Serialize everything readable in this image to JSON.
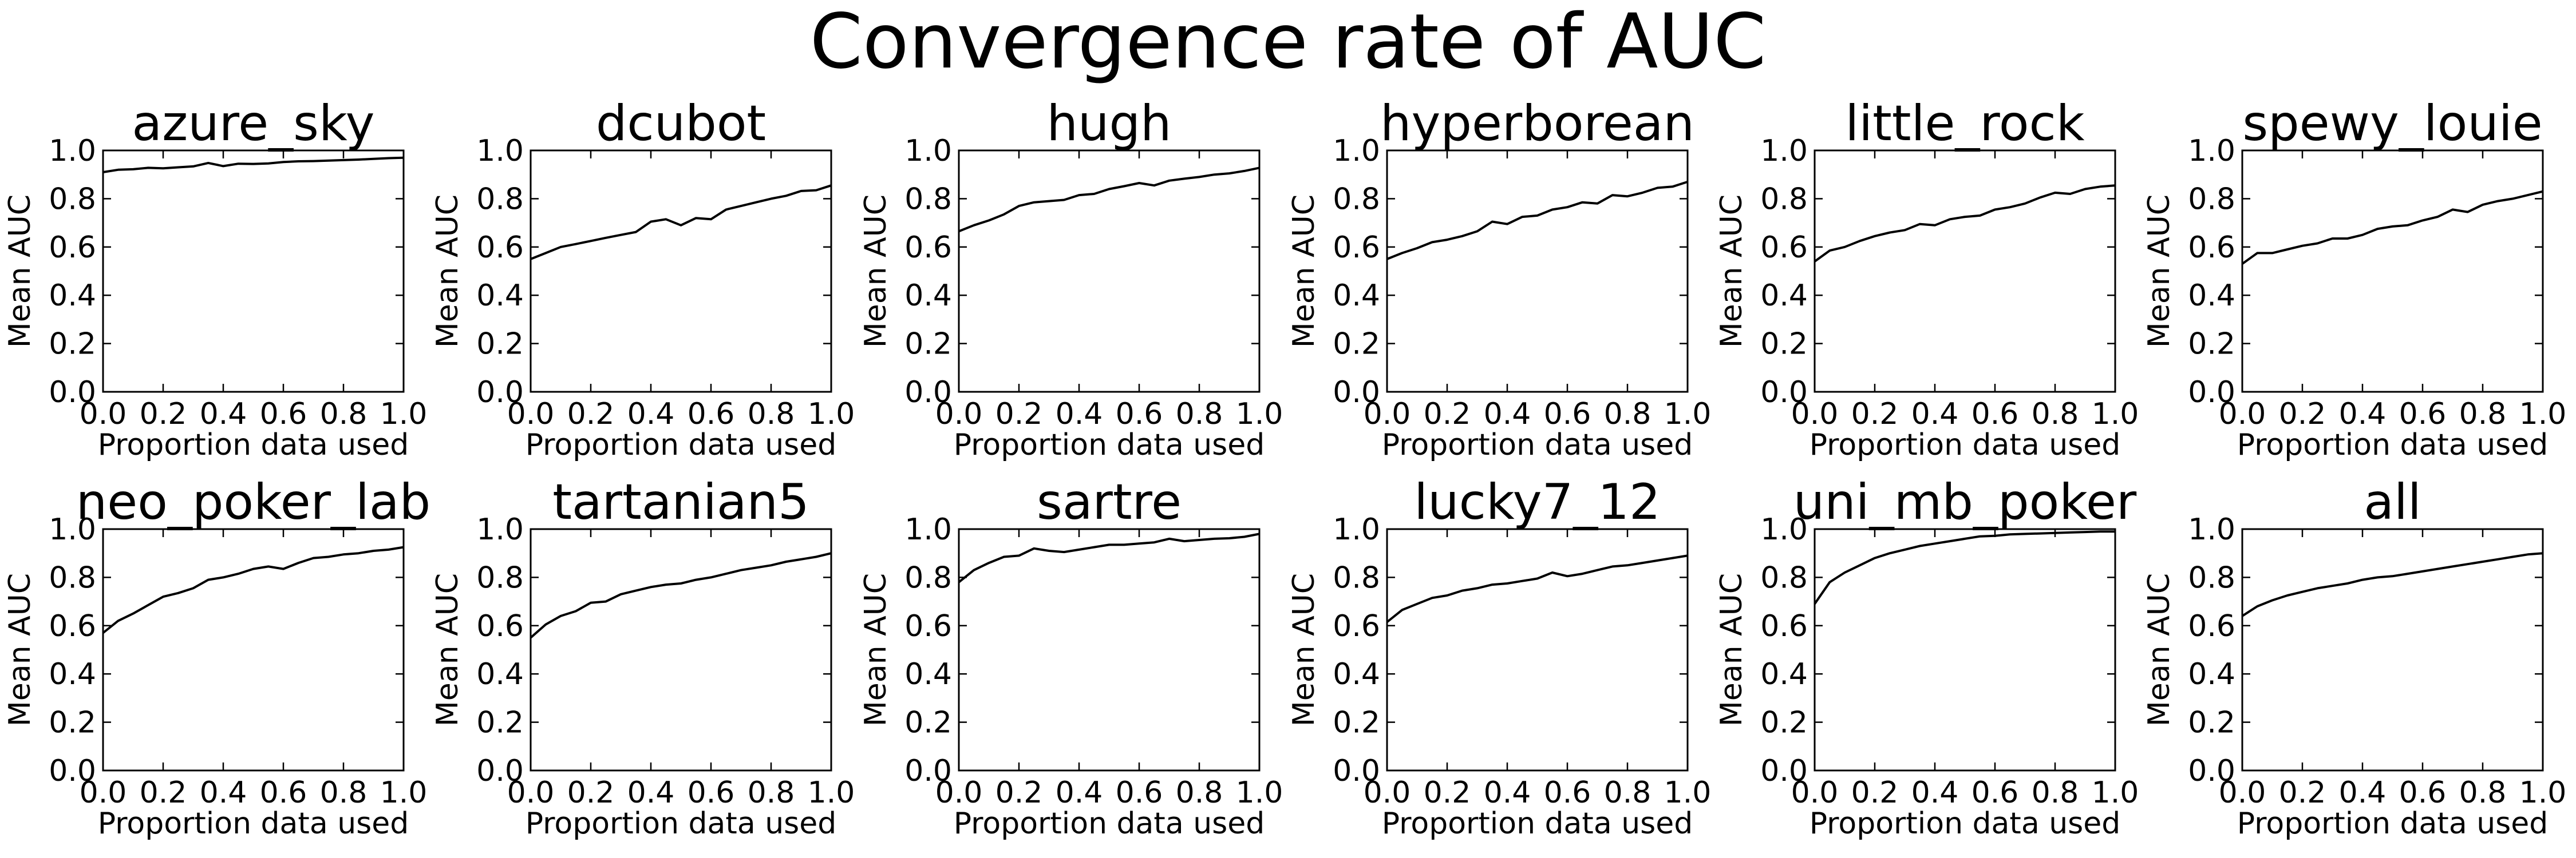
{
  "figure": {
    "title": "Convergence rate of AUC",
    "colors": {
      "line": "#000000",
      "background": "#ffffff"
    }
  },
  "chart_data": [
    {
      "type": "line",
      "title": "azure_sky",
      "xlabel": "Proportion data used",
      "ylabel": "Mean AUC",
      "xlim": [
        0,
        1
      ],
      "ylim": [
        0,
        1
      ],
      "xticks": [
        "0.0",
        "0.2",
        "0.4",
        "0.6",
        "0.8",
        "1.0"
      ],
      "yticks": [
        "0.0",
        "0.2",
        "0.4",
        "0.6",
        "0.8",
        "1.0"
      ],
      "x": [
        0,
        0.05,
        0.1,
        0.15,
        0.2,
        0.25,
        0.3,
        0.35,
        0.4,
        0.45,
        0.5,
        0.55,
        0.6,
        0.65,
        0.7,
        0.75,
        0.8,
        0.85,
        0.9,
        0.95,
        1.0
      ],
      "y": [
        0.91,
        0.92,
        0.922,
        0.928,
        0.926,
        0.93,
        0.934,
        0.948,
        0.935,
        0.945,
        0.944,
        0.946,
        0.952,
        0.955,
        0.956,
        0.958,
        0.96,
        0.962,
        0.965,
        0.968,
        0.97
      ]
    },
    {
      "type": "line",
      "title": "dcubot",
      "xlabel": "Proportion data used",
      "ylabel": "Mean AUC",
      "xlim": [
        0,
        1
      ],
      "ylim": [
        0,
        1
      ],
      "xticks": [
        "0.0",
        "0.2",
        "0.4",
        "0.6",
        "0.8",
        "1.0"
      ],
      "yticks": [
        "0.0",
        "0.2",
        "0.4",
        "0.6",
        "0.8",
        "1.0"
      ],
      "x": [
        0,
        0.05,
        0.1,
        0.15,
        0.2,
        0.25,
        0.3,
        0.35,
        0.4,
        0.45,
        0.5,
        0.55,
        0.6,
        0.65,
        0.7,
        0.75,
        0.8,
        0.85,
        0.9,
        0.95,
        1.0
      ],
      "y": [
        0.55,
        0.575,
        0.6,
        0.612,
        0.625,
        0.638,
        0.65,
        0.662,
        0.705,
        0.715,
        0.69,
        0.72,
        0.715,
        0.755,
        0.77,
        0.785,
        0.8,
        0.812,
        0.832,
        0.835,
        0.855
      ]
    },
    {
      "type": "line",
      "title": "hugh",
      "xlabel": "Proportion data used",
      "ylabel": "Mean AUC",
      "xlim": [
        0,
        1
      ],
      "ylim": [
        0,
        1
      ],
      "xticks": [
        "0.0",
        "0.2",
        "0.4",
        "0.6",
        "0.8",
        "1.0"
      ],
      "yticks": [
        "0.0",
        "0.2",
        "0.4",
        "0.6",
        "0.8",
        "1.0"
      ],
      "x": [
        0,
        0.05,
        0.1,
        0.15,
        0.2,
        0.25,
        0.3,
        0.35,
        0.4,
        0.45,
        0.5,
        0.55,
        0.6,
        0.65,
        0.7,
        0.75,
        0.8,
        0.85,
        0.9,
        0.95,
        1.0
      ],
      "y": [
        0.665,
        0.69,
        0.71,
        0.735,
        0.77,
        0.785,
        0.79,
        0.795,
        0.815,
        0.82,
        0.84,
        0.852,
        0.865,
        0.855,
        0.875,
        0.883,
        0.89,
        0.9,
        0.905,
        0.915,
        0.928
      ]
    },
    {
      "type": "line",
      "title": "hyperborean",
      "xlabel": "Proportion data used",
      "ylabel": "Mean AUC",
      "xlim": [
        0,
        1
      ],
      "ylim": [
        0,
        1
      ],
      "xticks": [
        "0.0",
        "0.2",
        "0.4",
        "0.6",
        "0.8",
        "1.0"
      ],
      "yticks": [
        "0.0",
        "0.2",
        "0.4",
        "0.6",
        "0.8",
        "1.0"
      ],
      "x": [
        0,
        0.05,
        0.1,
        0.15,
        0.2,
        0.25,
        0.3,
        0.35,
        0.4,
        0.45,
        0.5,
        0.55,
        0.6,
        0.65,
        0.7,
        0.75,
        0.8,
        0.85,
        0.9,
        0.95,
        1.0
      ],
      "y": [
        0.55,
        0.575,
        0.595,
        0.62,
        0.63,
        0.645,
        0.665,
        0.705,
        0.695,
        0.725,
        0.73,
        0.755,
        0.765,
        0.785,
        0.78,
        0.815,
        0.81,
        0.825,
        0.845,
        0.85,
        0.87
      ]
    },
    {
      "type": "line",
      "title": "little_rock",
      "xlabel": "Proportion data used",
      "ylabel": "Mean AUC",
      "xlim": [
        0,
        1
      ],
      "ylim": [
        0,
        1
      ],
      "xticks": [
        "0.0",
        "0.2",
        "0.4",
        "0.6",
        "0.8",
        "1.0"
      ],
      "yticks": [
        "0.0",
        "0.2",
        "0.4",
        "0.6",
        "0.8",
        "1.0"
      ],
      "x": [
        0,
        0.05,
        0.1,
        0.15,
        0.2,
        0.25,
        0.3,
        0.35,
        0.4,
        0.45,
        0.5,
        0.55,
        0.6,
        0.65,
        0.7,
        0.75,
        0.8,
        0.85,
        0.9,
        0.95,
        1.0
      ],
      "y": [
        0.54,
        0.585,
        0.6,
        0.625,
        0.645,
        0.66,
        0.67,
        0.695,
        0.69,
        0.715,
        0.725,
        0.73,
        0.755,
        0.765,
        0.78,
        0.805,
        0.825,
        0.82,
        0.84,
        0.85,
        0.855
      ]
    },
    {
      "type": "line",
      "title": "spewy_louie",
      "xlabel": "Proportion data used",
      "ylabel": "Mean AUC",
      "xlim": [
        0,
        1
      ],
      "ylim": [
        0,
        1
      ],
      "xticks": [
        "0.0",
        "0.2",
        "0.4",
        "0.6",
        "0.8",
        "1.0"
      ],
      "yticks": [
        "0.0",
        "0.2",
        "0.4",
        "0.6",
        "0.8",
        "1.0"
      ],
      "x": [
        0,
        0.05,
        0.1,
        0.15,
        0.2,
        0.25,
        0.3,
        0.35,
        0.4,
        0.45,
        0.5,
        0.55,
        0.6,
        0.65,
        0.7,
        0.75,
        0.8,
        0.85,
        0.9,
        0.95,
        1.0
      ],
      "y": [
        0.53,
        0.575,
        0.575,
        0.59,
        0.605,
        0.615,
        0.635,
        0.635,
        0.65,
        0.675,
        0.685,
        0.69,
        0.71,
        0.725,
        0.755,
        0.745,
        0.775,
        0.79,
        0.8,
        0.815,
        0.83
      ]
    },
    {
      "type": "line",
      "title": "neo_poker_lab",
      "xlabel": "Proportion data used",
      "ylabel": "Mean AUC",
      "xlim": [
        0,
        1
      ],
      "ylim": [
        0,
        1
      ],
      "xticks": [
        "0.0",
        "0.2",
        "0.4",
        "0.6",
        "0.8",
        "1.0"
      ],
      "yticks": [
        "0.0",
        "0.2",
        "0.4",
        "0.6",
        "0.8",
        "1.0"
      ],
      "x": [
        0,
        0.05,
        0.1,
        0.15,
        0.2,
        0.25,
        0.3,
        0.35,
        0.4,
        0.45,
        0.5,
        0.55,
        0.6,
        0.65,
        0.7,
        0.75,
        0.8,
        0.85,
        0.9,
        0.95,
        1.0
      ],
      "y": [
        0.57,
        0.62,
        0.65,
        0.685,
        0.72,
        0.735,
        0.755,
        0.79,
        0.8,
        0.815,
        0.835,
        0.845,
        0.835,
        0.86,
        0.88,
        0.885,
        0.895,
        0.9,
        0.91,
        0.915,
        0.925
      ]
    },
    {
      "type": "line",
      "title": "tartanian5",
      "xlabel": "Proportion data used",
      "ylabel": "Mean AUC",
      "xlim": [
        0,
        1
      ],
      "ylim": [
        0,
        1
      ],
      "xticks": [
        "0.0",
        "0.2",
        "0.4",
        "0.6",
        "0.8",
        "1.0"
      ],
      "yticks": [
        "0.0",
        "0.2",
        "0.4",
        "0.6",
        "0.8",
        "1.0"
      ],
      "x": [
        0,
        0.05,
        0.1,
        0.15,
        0.2,
        0.25,
        0.3,
        0.35,
        0.4,
        0.45,
        0.5,
        0.55,
        0.6,
        0.65,
        0.7,
        0.75,
        0.8,
        0.85,
        0.9,
        0.95,
        1.0
      ],
      "y": [
        0.55,
        0.605,
        0.64,
        0.66,
        0.695,
        0.7,
        0.73,
        0.745,
        0.76,
        0.77,
        0.775,
        0.79,
        0.8,
        0.815,
        0.83,
        0.84,
        0.85,
        0.865,
        0.875,
        0.885,
        0.9
      ]
    },
    {
      "type": "line",
      "title": "sartre",
      "xlabel": "Proportion data used",
      "ylabel": "Mean AUC",
      "xlim": [
        0,
        1
      ],
      "ylim": [
        0,
        1
      ],
      "xticks": [
        "0.0",
        "0.2",
        "0.4",
        "0.6",
        "0.8",
        "1.0"
      ],
      "yticks": [
        "0.0",
        "0.2",
        "0.4",
        "0.6",
        "0.8",
        "1.0"
      ],
      "x": [
        0,
        0.05,
        0.1,
        0.15,
        0.2,
        0.25,
        0.3,
        0.35,
        0.4,
        0.45,
        0.5,
        0.55,
        0.6,
        0.65,
        0.7,
        0.75,
        0.8,
        0.85,
        0.9,
        0.95,
        1.0
      ],
      "y": [
        0.78,
        0.83,
        0.86,
        0.885,
        0.89,
        0.92,
        0.91,
        0.905,
        0.915,
        0.925,
        0.935,
        0.935,
        0.94,
        0.945,
        0.96,
        0.95,
        0.955,
        0.96,
        0.962,
        0.968,
        0.98
      ]
    },
    {
      "type": "line",
      "title": "lucky7_12",
      "xlabel": "Proportion data used",
      "ylabel": "Mean AUC",
      "xlim": [
        0,
        1
      ],
      "ylim": [
        0,
        1
      ],
      "xticks": [
        "0.0",
        "0.2",
        "0.4",
        "0.6",
        "0.8",
        "1.0"
      ],
      "yticks": [
        "0.0",
        "0.2",
        "0.4",
        "0.6",
        "0.8",
        "1.0"
      ],
      "x": [
        0,
        0.05,
        0.1,
        0.15,
        0.2,
        0.25,
        0.3,
        0.35,
        0.4,
        0.45,
        0.5,
        0.55,
        0.6,
        0.65,
        0.7,
        0.75,
        0.8,
        0.85,
        0.9,
        0.95,
        1.0
      ],
      "y": [
        0.615,
        0.665,
        0.69,
        0.715,
        0.725,
        0.745,
        0.755,
        0.77,
        0.775,
        0.785,
        0.795,
        0.82,
        0.805,
        0.815,
        0.83,
        0.845,
        0.85,
        0.86,
        0.87,
        0.88,
        0.89
      ]
    },
    {
      "type": "line",
      "title": "uni_mb_poker",
      "xlabel": "Proportion data used",
      "ylabel": "Mean AUC",
      "xlim": [
        0,
        1
      ],
      "ylim": [
        0,
        1
      ],
      "xticks": [
        "0.0",
        "0.2",
        "0.4",
        "0.6",
        "0.8",
        "1.0"
      ],
      "yticks": [
        "0.0",
        "0.2",
        "0.4",
        "0.6",
        "0.8",
        "1.0"
      ],
      "x": [
        0,
        0.05,
        0.1,
        0.15,
        0.2,
        0.25,
        0.3,
        0.35,
        0.4,
        0.45,
        0.5,
        0.55,
        0.6,
        0.65,
        0.7,
        0.75,
        0.8,
        0.85,
        0.9,
        0.95,
        1.0
      ],
      "y": [
        0.69,
        0.78,
        0.82,
        0.85,
        0.88,
        0.9,
        0.915,
        0.93,
        0.94,
        0.95,
        0.96,
        0.97,
        0.972,
        0.978,
        0.98,
        0.982,
        0.984,
        0.986,
        0.988,
        0.99,
        0.99
      ]
    },
    {
      "type": "line",
      "title": "all",
      "xlabel": "Proportion data used",
      "ylabel": "Mean AUC",
      "xlim": [
        0,
        1
      ],
      "ylim": [
        0,
        1
      ],
      "xticks": [
        "0.0",
        "0.2",
        "0.4",
        "0.6",
        "0.8",
        "1.0"
      ],
      "yticks": [
        "0.0",
        "0.2",
        "0.4",
        "0.6",
        "0.8",
        "1.0"
      ],
      "x": [
        0,
        0.05,
        0.1,
        0.15,
        0.2,
        0.25,
        0.3,
        0.35,
        0.4,
        0.45,
        0.5,
        0.55,
        0.6,
        0.65,
        0.7,
        0.75,
        0.8,
        0.85,
        0.9,
        0.95,
        1.0
      ],
      "y": [
        0.64,
        0.68,
        0.705,
        0.725,
        0.74,
        0.755,
        0.765,
        0.775,
        0.79,
        0.8,
        0.805,
        0.815,
        0.825,
        0.835,
        0.845,
        0.855,
        0.865,
        0.875,
        0.885,
        0.895,
        0.9
      ]
    }
  ]
}
